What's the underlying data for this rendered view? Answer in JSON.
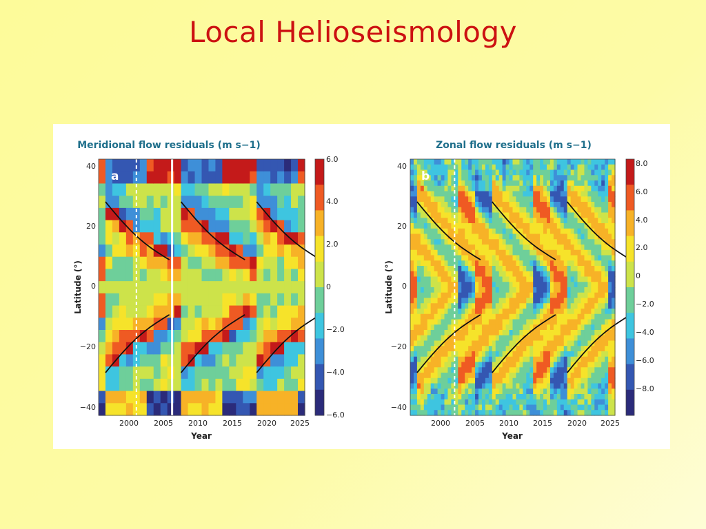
{
  "slide": {
    "title": "Local Helioseismology"
  },
  "chart_data": [
    {
      "type": "heatmap",
      "panel_label": "a",
      "title": "Meridional flow residuals (m s−1)",
      "xlabel": "Year",
      "ylabel": "Latitude (°)",
      "xlim": [
        1996,
        2026
      ],
      "ylim": [
        -42,
        42
      ],
      "x_ticks": [
        "2000",
        "2005",
        "2010",
        "2015",
        "2020",
        "2025"
      ],
      "y_ticks": [
        "40",
        "20",
        "0",
        "−20",
        "−40"
      ],
      "colorbar": {
        "min": -6.0,
        "max": 6.0,
        "ticks": [
          "6.0",
          "4.0",
          "2.0",
          "0",
          "−2.0",
          "−4.0",
          "−6.0"
        ]
      },
      "colormap": [
        "#2b2b7a",
        "#3457b2",
        "#3e8fd8",
        "#3ec5e0",
        "#6ecf9a",
        "#cde34a",
        "#f6e32a",
        "#f7b227",
        "#ef5a23",
        "#c41a1a"
      ],
      "dashed_line_year": 2001.5,
      "separator_year": 2006.7,
      "hidden_after_year": 2006.7,
      "cycle_years": [
        1997,
        2008,
        2019
      ],
      "style": "blocky"
    },
    {
      "type": "heatmap",
      "panel_label": "b",
      "title": "Zonal flow residuals (m s−1)",
      "xlabel": "Year",
      "ylabel": "Latitude (°)",
      "xlim": [
        1996,
        2026
      ],
      "ylim": [
        -42,
        42
      ],
      "x_ticks": [
        "2000",
        "2005",
        "2010",
        "2015",
        "2020",
        "2025"
      ],
      "y_ticks": [
        "40",
        "20",
        "0",
        "−20",
        "−40"
      ],
      "colorbar": {
        "min": -9.5,
        "max": 8.8,
        "ticks": [
          "8.0",
          "6.0",
          "4.0",
          "2.0",
          "0",
          "−2.0",
          "−4.0",
          "−6.0",
          "−8.0"
        ]
      },
      "colormap": [
        "#2b2b7a",
        "#3457b2",
        "#3e8fd8",
        "#3ec5e0",
        "#6ecf9a",
        "#cde34a",
        "#f6e32a",
        "#f7b227",
        "#ef5a23",
        "#c41a1a"
      ],
      "dashed_line_year": 2002.5,
      "cycle_years": [
        1997,
        2008,
        2019
      ],
      "style": "smooth"
    }
  ]
}
